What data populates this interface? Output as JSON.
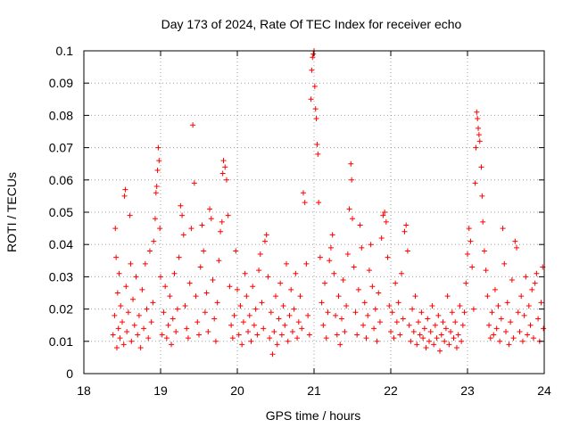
{
  "chart_data": {
    "type": "scatter",
    "title": "Day 173 of 2024, Rate Of TEC Index for receiver echo",
    "xlabel": "GPS time / hours",
    "ylabel": "ROTI / TECUs",
    "xlim": [
      18,
      24
    ],
    "ylim": [
      0,
      0.1
    ],
    "x_ticks": [
      18,
      19,
      20,
      21,
      22,
      23,
      24
    ],
    "x_tick_labels": [
      "18",
      "19",
      "20",
      "21",
      "22",
      "23",
      "24"
    ],
    "y_ticks": [
      0,
      0.01,
      0.02,
      0.03,
      0.04,
      0.05,
      0.06,
      0.07,
      0.08,
      0.09,
      0.1
    ],
    "y_tick_labels": [
      "0",
      "0.01",
      "0.02",
      "0.03",
      "0.04",
      "0.05",
      "0.06",
      "0.07",
      "0.08",
      "0.09",
      "0.1"
    ],
    "grid": true,
    "marker": "+",
    "marker_color": "#ff0000",
    "series": [
      {
        "name": "ROTI",
        "points": [
          [
            18.38,
            0.012
          ],
          [
            18.4,
            0.018
          ],
          [
            18.41,
            0.045
          ],
          [
            18.42,
            0.036
          ],
          [
            18.43,
            0.008
          ],
          [
            18.44,
            0.025
          ],
          [
            18.45,
            0.014
          ],
          [
            18.46,
            0.031
          ],
          [
            18.47,
            0.011
          ],
          [
            18.48,
            0.021
          ],
          [
            18.5,
            0.016
          ],
          [
            18.52,
            0.009
          ],
          [
            18.53,
            0.055
          ],
          [
            18.54,
            0.057
          ],
          [
            18.55,
            0.027
          ],
          [
            18.56,
            0.013
          ],
          [
            18.58,
            0.019
          ],
          [
            18.6,
            0.049
          ],
          [
            18.61,
            0.034
          ],
          [
            18.62,
            0.01
          ],
          [
            18.64,
            0.023
          ],
          [
            18.66,
            0.015
          ],
          [
            18.68,
            0.03
          ],
          [
            18.7,
            0.012
          ],
          [
            18.72,
            0.018
          ],
          [
            18.74,
            0.008
          ],
          [
            18.76,
            0.026
          ],
          [
            18.78,
            0.014
          ],
          [
            18.8,
            0.034
          ],
          [
            18.82,
            0.02
          ],
          [
            18.84,
            0.011
          ],
          [
            18.86,
            0.038
          ],
          [
            18.88,
            0.016
          ],
          [
            18.9,
            0.022
          ],
          [
            18.91,
            0.041
          ],
          [
            18.93,
            0.048
          ],
          [
            18.94,
            0.056
          ],
          [
            18.95,
            0.058
          ],
          [
            18.96,
            0.063
          ],
          [
            18.97,
            0.07
          ],
          [
            18.98,
            0.066
          ],
          [
            18.99,
            0.045
          ],
          [
            19.0,
            0.03
          ],
          [
            19.02,
            0.012
          ],
          [
            19.04,
            0.019
          ],
          [
            19.06,
            0.027
          ],
          [
            19.08,
            0.011
          ],
          [
            19.1,
            0.015
          ],
          [
            19.12,
            0.024
          ],
          [
            19.14,
            0.009
          ],
          [
            19.16,
            0.017
          ],
          [
            19.18,
            0.031
          ],
          [
            19.2,
            0.013
          ],
          [
            19.22,
            0.02
          ],
          [
            19.24,
            0.036
          ],
          [
            19.26,
            0.052
          ],
          [
            19.28,
            0.049
          ],
          [
            19.3,
            0.043
          ],
          [
            19.32,
            0.021
          ],
          [
            19.34,
            0.014
          ],
          [
            19.36,
            0.011
          ],
          [
            19.38,
            0.028
          ],
          [
            19.4,
            0.045
          ],
          [
            19.42,
            0.077
          ],
          [
            19.44,
            0.059
          ],
          [
            19.46,
            0.024
          ],
          [
            19.48,
            0.016
          ],
          [
            19.5,
            0.012
          ],
          [
            19.52,
            0.033
          ],
          [
            19.54,
            0.046
          ],
          [
            19.56,
            0.038
          ],
          [
            19.58,
            0.019
          ],
          [
            19.6,
            0.025
          ],
          [
            19.62,
            0.013
          ],
          [
            19.64,
            0.051
          ],
          [
            19.66,
            0.048
          ],
          [
            19.68,
            0.029
          ],
          [
            19.7,
            0.017
          ],
          [
            19.72,
            0.01
          ],
          [
            19.74,
            0.022
          ],
          [
            19.76,
            0.035
          ],
          [
            19.78,
            0.044
          ],
          [
            19.8,
            0.047
          ],
          [
            19.81,
            0.062
          ],
          [
            19.82,
            0.066
          ],
          [
            19.84,
            0.064
          ],
          [
            19.86,
            0.06
          ],
          [
            19.88,
            0.049
          ],
          [
            19.9,
            0.027
          ],
          [
            19.92,
            0.015
          ],
          [
            19.94,
            0.011
          ],
          [
            19.96,
            0.018
          ],
          [
            19.98,
            0.038
          ],
          [
            20.0,
            0.026
          ],
          [
            20.02,
            0.012
          ],
          [
            20.04,
            0.021
          ],
          [
            20.06,
            0.009
          ],
          [
            20.08,
            0.016
          ],
          [
            20.1,
            0.031
          ],
          [
            20.12,
            0.024
          ],
          [
            20.14,
            0.013
          ],
          [
            20.16,
            0.018
          ],
          [
            20.18,
            0.01
          ],
          [
            20.2,
            0.027
          ],
          [
            20.22,
            0.015
          ],
          [
            20.24,
            0.02
          ],
          [
            20.26,
            0.012
          ],
          [
            20.28,
            0.032
          ],
          [
            20.3,
            0.037
          ],
          [
            20.32,
            0.022
          ],
          [
            20.34,
            0.014
          ],
          [
            20.36,
            0.041
          ],
          [
            20.38,
            0.043
          ],
          [
            20.4,
            0.03
          ],
          [
            20.42,
            0.011
          ],
          [
            20.44,
            0.019
          ],
          [
            20.46,
            0.006
          ],
          [
            20.48,
            0.013
          ],
          [
            20.5,
            0.024
          ],
          [
            20.52,
            0.009
          ],
          [
            20.54,
            0.017
          ],
          [
            20.56,
            0.028
          ],
          [
            20.58,
            0.012
          ],
          [
            20.6,
            0.021
          ],
          [
            20.62,
            0.015
          ],
          [
            20.64,
            0.034
          ],
          [
            20.66,
            0.01
          ],
          [
            20.68,
            0.018
          ],
          [
            20.7,
            0.026
          ],
          [
            20.72,
            0.013
          ],
          [
            20.74,
            0.02
          ],
          [
            20.76,
            0.031
          ],
          [
            20.78,
            0.011
          ],
          [
            20.8,
            0.016
          ],
          [
            20.82,
            0.024
          ],
          [
            20.84,
            0.014
          ],
          [
            20.86,
            0.056
          ],
          [
            20.88,
            0.053
          ],
          [
            20.9,
            0.034
          ],
          [
            20.92,
            0.018
          ],
          [
            20.94,
            0.012
          ],
          [
            20.96,
            0.085
          ],
          [
            20.97,
            0.094
          ],
          [
            20.98,
            0.098
          ],
          [
            20.99,
            0.099
          ],
          [
            21.0,
            0.1
          ],
          [
            21.01,
            0.089
          ],
          [
            21.02,
            0.082
          ],
          [
            21.03,
            0.079
          ],
          [
            21.04,
            0.071
          ],
          [
            21.05,
            0.068
          ],
          [
            21.06,
            0.053
          ],
          [
            21.08,
            0.036
          ],
          [
            21.1,
            0.022
          ],
          [
            21.12,
            0.015
          ],
          [
            21.14,
            0.028
          ],
          [
            21.16,
            0.011
          ],
          [
            21.18,
            0.019
          ],
          [
            21.2,
            0.035
          ],
          [
            21.22,
            0.039
          ],
          [
            21.24,
            0.043
          ],
          [
            21.26,
            0.031
          ],
          [
            21.28,
            0.018
          ],
          [
            21.3,
            0.012
          ],
          [
            21.32,
            0.024
          ],
          [
            21.34,
            0.009
          ],
          [
            21.36,
            0.017
          ],
          [
            21.38,
            0.029
          ],
          [
            21.4,
            0.013
          ],
          [
            21.42,
            0.021
          ],
          [
            21.44,
            0.037
          ],
          [
            21.46,
            0.051
          ],
          [
            21.48,
            0.065
          ],
          [
            21.49,
            0.06
          ],
          [
            21.5,
            0.048
          ],
          [
            21.52,
            0.033
          ],
          [
            21.54,
            0.019
          ],
          [
            21.56,
            0.012
          ],
          [
            21.58,
            0.026
          ],
          [
            21.6,
            0.046
          ],
          [
            21.62,
            0.039
          ],
          [
            21.64,
            0.015
          ],
          [
            21.66,
            0.022
          ],
          [
            21.68,
            0.011
          ],
          [
            21.7,
            0.018
          ],
          [
            21.72,
            0.032
          ],
          [
            21.74,
            0.04
          ],
          [
            21.76,
            0.027
          ],
          [
            21.78,
            0.014
          ],
          [
            21.8,
            0.02
          ],
          [
            21.82,
            0.01
          ],
          [
            21.84,
            0.025
          ],
          [
            21.86,
            0.016
          ],
          [
            21.88,
            0.042
          ],
          [
            21.9,
            0.049
          ],
          [
            21.92,
            0.05
          ],
          [
            21.94,
            0.047
          ],
          [
            21.96,
            0.036
          ],
          [
            21.98,
            0.021
          ],
          [
            22.0,
            0.013
          ],
          [
            22.02,
            0.019
          ],
          [
            22.04,
            0.011
          ],
          [
            22.06,
            0.028
          ],
          [
            22.08,
            0.016
          ],
          [
            22.1,
            0.022
          ],
          [
            22.12,
            0.012
          ],
          [
            22.14,
            0.031
          ],
          [
            22.16,
            0.017
          ],
          [
            22.18,
            0.044
          ],
          [
            22.2,
            0.046
          ],
          [
            22.22,
            0.038
          ],
          [
            22.24,
            0.015
          ],
          [
            22.26,
            0.01
          ],
          [
            22.28,
            0.02
          ],
          [
            22.3,
            0.013
          ],
          [
            22.32,
            0.024
          ],
          [
            22.34,
            0.009
          ],
          [
            22.36,
            0.016
          ],
          [
            22.38,
            0.012
          ],
          [
            22.4,
            0.019
          ],
          [
            22.42,
            0.011
          ],
          [
            22.44,
            0.014
          ],
          [
            22.46,
            0.008
          ],
          [
            22.48,
            0.017
          ],
          [
            22.5,
            0.01
          ],
          [
            22.52,
            0.013
          ],
          [
            22.54,
            0.021
          ],
          [
            22.56,
            0.009
          ],
          [
            22.58,
            0.015
          ],
          [
            22.6,
            0.011
          ],
          [
            22.62,
            0.018
          ],
          [
            22.64,
            0.007
          ],
          [
            22.66,
            0.012
          ],
          [
            22.68,
            0.016
          ],
          [
            22.7,
            0.01
          ],
          [
            22.72,
            0.014
          ],
          [
            22.74,
            0.024
          ],
          [
            22.76,
            0.009
          ],
          [
            22.78,
            0.013
          ],
          [
            22.8,
            0.019
          ],
          [
            22.82,
            0.011
          ],
          [
            22.84,
            0.016
          ],
          [
            22.86,
            0.008
          ],
          [
            22.88,
            0.012
          ],
          [
            22.9,
            0.021
          ],
          [
            22.92,
            0.01
          ],
          [
            22.94,
            0.015
          ],
          [
            22.96,
            0.019
          ],
          [
            22.98,
            0.028
          ],
          [
            23.0,
            0.037
          ],
          [
            23.02,
            0.045
          ],
          [
            23.04,
            0.041
          ],
          [
            23.06,
            0.033
          ],
          [
            23.08,
            0.02
          ],
          [
            23.1,
            0.059
          ],
          [
            23.11,
            0.07
          ],
          [
            23.12,
            0.081
          ],
          [
            23.13,
            0.079
          ],
          [
            23.14,
            0.076
          ],
          [
            23.15,
            0.074
          ],
          [
            23.16,
            0.072
          ],
          [
            23.18,
            0.064
          ],
          [
            23.19,
            0.055
          ],
          [
            23.2,
            0.047
          ],
          [
            23.22,
            0.038
          ],
          [
            23.24,
            0.032
          ],
          [
            23.26,
            0.024
          ],
          [
            23.28,
            0.015
          ],
          [
            23.3,
            0.011
          ],
          [
            23.32,
            0.019
          ],
          [
            23.34,
            0.012
          ],
          [
            23.36,
            0.026
          ],
          [
            23.38,
            0.014
          ],
          [
            23.4,
            0.021
          ],
          [
            23.42,
            0.01
          ],
          [
            23.44,
            0.017
          ],
          [
            23.46,
            0.045
          ],
          [
            23.48,
            0.034
          ],
          [
            23.5,
            0.013
          ],
          [
            23.52,
            0.022
          ],
          [
            23.54,
            0.009
          ],
          [
            23.56,
            0.016
          ],
          [
            23.58,
            0.029
          ],
          [
            23.6,
            0.011
          ],
          [
            23.62,
            0.041
          ],
          [
            23.64,
            0.039
          ],
          [
            23.66,
            0.019
          ],
          [
            23.68,
            0.013
          ],
          [
            23.7,
            0.024
          ],
          [
            23.72,
            0.01
          ],
          [
            23.74,
            0.018
          ],
          [
            23.76,
            0.03
          ],
          [
            23.78,
            0.012
          ],
          [
            23.8,
            0.021
          ],
          [
            23.82,
            0.015
          ],
          [
            23.84,
            0.026
          ],
          [
            23.86,
            0.011
          ],
          [
            23.88,
            0.028
          ],
          [
            23.9,
            0.031
          ],
          [
            23.92,
            0.017
          ],
          [
            23.94,
            0.01
          ],
          [
            23.96,
            0.022
          ],
          [
            23.98,
            0.033
          ],
          [
            23.99,
            0.014
          ]
        ]
      }
    ]
  }
}
